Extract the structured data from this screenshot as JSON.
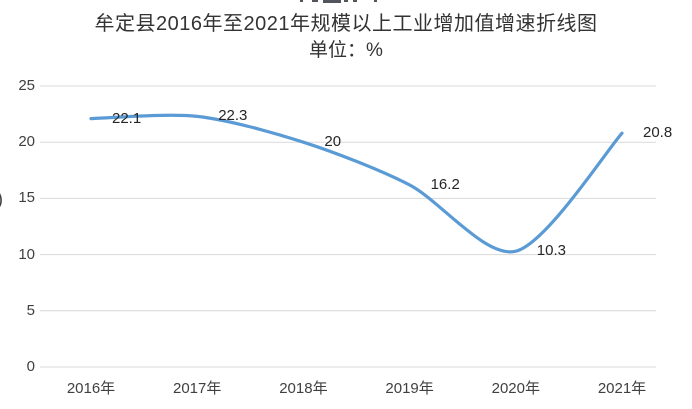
{
  "fragments": {
    "left_glyph": ")"
  },
  "chart_data": {
    "type": "line",
    "title": "牟定县2016年至2021年规模以上工业增加值增速折线图",
    "subtitle": "单位：%",
    "categories": [
      "2016年",
      "2017年",
      "2018年",
      "2019年",
      "2020年",
      "2021年"
    ],
    "values": [
      22.1,
      22.3,
      20,
      16.2,
      10.3,
      20.8
    ],
    "value_labels": [
      "22.1",
      "22.3",
      "20",
      "16.2",
      "10.3",
      "20.8"
    ],
    "xlabel": "",
    "ylabel": "",
    "ylim": [
      0,
      25
    ],
    "yticks": [
      0,
      5,
      10,
      15,
      20,
      25
    ],
    "grid": true,
    "legend": "none",
    "smooth": true,
    "colors": {
      "line": "#5B9BD5",
      "gridline": "#D9D9D9",
      "axis_text": "#404040",
      "title_text": "#333333",
      "data_label_text": "#262626",
      "background": "#ffffff"
    }
  }
}
